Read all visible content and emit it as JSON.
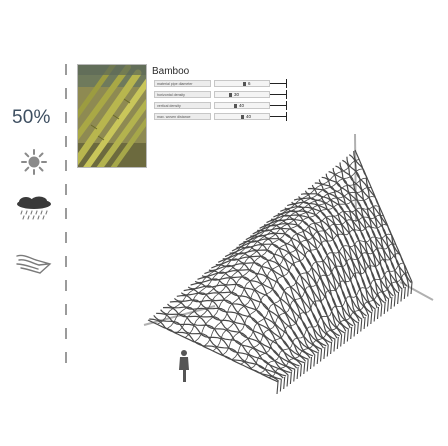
{
  "indicator": {
    "percent": "50%",
    "icons": [
      "sun-icon",
      "rain-cloud-icon",
      "wind-icon"
    ],
    "tick_count": 13
  },
  "material": {
    "title": "Bamboo",
    "photo": "bamboo-poles-photo",
    "params": [
      {
        "label": "material pipe diameter",
        "value": "6",
        "position": 0.55
      },
      {
        "label": "horizontal density",
        "value": "30",
        "position": 0.28
      },
      {
        "label": "vertical density",
        "value": "40",
        "position": 0.38
      },
      {
        "label": "max. woven distance",
        "value": "40",
        "position": 0.52
      }
    ]
  },
  "illustration": {
    "structure": "woven-bamboo-canopy",
    "figure": "human-scale-figure",
    "colors": {
      "weave": "#4a4a4a",
      "axis": "#b0b0b0",
      "ticks": "#9b9b9b",
      "percent": "#3e4f61"
    }
  }
}
